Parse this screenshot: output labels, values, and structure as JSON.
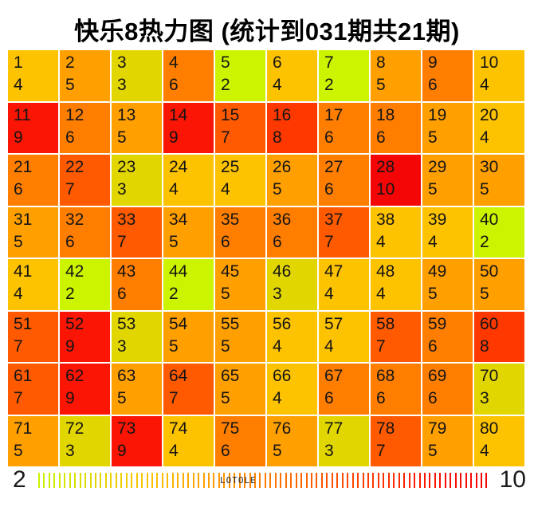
{
  "title": "快乐8热力图 (统计到031期共21期)",
  "legend": {
    "min_label": "2",
    "max_label": "10",
    "watermark": "LOTOLE",
    "tick_count": 88
  },
  "chart_data": {
    "type": "heatmap",
    "title": "快乐8热力图 (统计到031期共21期)",
    "rows": 8,
    "cols": 10,
    "value_range": [
      2,
      10
    ],
    "colormap": {
      "2": "#ccf400",
      "3": "#e2d600",
      "4": "#fdc200",
      "5": "#ff9f00",
      "6": "#ff7e00",
      "7": "#ff5a00",
      "8": "#ff3800",
      "9": "#fb1505",
      "10": "#f40606"
    },
    "cells": [
      {
        "number": 1,
        "count": 4
      },
      {
        "number": 2,
        "count": 5
      },
      {
        "number": 3,
        "count": 3
      },
      {
        "number": 4,
        "count": 6
      },
      {
        "number": 5,
        "count": 2
      },
      {
        "number": 6,
        "count": 4
      },
      {
        "number": 7,
        "count": 2
      },
      {
        "number": 8,
        "count": 5
      },
      {
        "number": 9,
        "count": 6
      },
      {
        "number": 10,
        "count": 4
      },
      {
        "number": 11,
        "count": 9
      },
      {
        "number": 12,
        "count": 6
      },
      {
        "number": 13,
        "count": 5
      },
      {
        "number": 14,
        "count": 9
      },
      {
        "number": 15,
        "count": 7
      },
      {
        "number": 16,
        "count": 8
      },
      {
        "number": 17,
        "count": 6
      },
      {
        "number": 18,
        "count": 6
      },
      {
        "number": 19,
        "count": 5
      },
      {
        "number": 20,
        "count": 4
      },
      {
        "number": 21,
        "count": 6
      },
      {
        "number": 22,
        "count": 7
      },
      {
        "number": 23,
        "count": 3
      },
      {
        "number": 24,
        "count": 4
      },
      {
        "number": 25,
        "count": 4
      },
      {
        "number": 26,
        "count": 5
      },
      {
        "number": 27,
        "count": 6
      },
      {
        "number": 28,
        "count": 10
      },
      {
        "number": 29,
        "count": 5
      },
      {
        "number": 30,
        "count": 5
      },
      {
        "number": 31,
        "count": 5
      },
      {
        "number": 32,
        "count": 6
      },
      {
        "number": 33,
        "count": 7
      },
      {
        "number": 34,
        "count": 5
      },
      {
        "number": 35,
        "count": 6
      },
      {
        "number": 36,
        "count": 6
      },
      {
        "number": 37,
        "count": 7
      },
      {
        "number": 38,
        "count": 4
      },
      {
        "number": 39,
        "count": 4
      },
      {
        "number": 40,
        "count": 2
      },
      {
        "number": 41,
        "count": 4
      },
      {
        "number": 42,
        "count": 2
      },
      {
        "number": 43,
        "count": 6
      },
      {
        "number": 44,
        "count": 2
      },
      {
        "number": 45,
        "count": 5
      },
      {
        "number": 46,
        "count": 3
      },
      {
        "number": 47,
        "count": 4
      },
      {
        "number": 48,
        "count": 4
      },
      {
        "number": 49,
        "count": 5
      },
      {
        "number": 50,
        "count": 5
      },
      {
        "number": 51,
        "count": 7
      },
      {
        "number": 52,
        "count": 9
      },
      {
        "number": 53,
        "count": 3
      },
      {
        "number": 54,
        "count": 5
      },
      {
        "number": 55,
        "count": 5
      },
      {
        "number": 56,
        "count": 4
      },
      {
        "number": 57,
        "count": 4
      },
      {
        "number": 58,
        "count": 7
      },
      {
        "number": 59,
        "count": 6
      },
      {
        "number": 60,
        "count": 8
      },
      {
        "number": 61,
        "count": 7
      },
      {
        "number": 62,
        "count": 9
      },
      {
        "number": 63,
        "count": 5
      },
      {
        "number": 64,
        "count": 7
      },
      {
        "number": 65,
        "count": 5
      },
      {
        "number": 66,
        "count": 4
      },
      {
        "number": 67,
        "count": 6
      },
      {
        "number": 68,
        "count": 6
      },
      {
        "number": 69,
        "count": 6
      },
      {
        "number": 70,
        "count": 3
      },
      {
        "number": 71,
        "count": 5
      },
      {
        "number": 72,
        "count": 3
      },
      {
        "number": 73,
        "count": 9
      },
      {
        "number": 74,
        "count": 4
      },
      {
        "number": 75,
        "count": 6
      },
      {
        "number": 76,
        "count": 5
      },
      {
        "number": 77,
        "count": 3
      },
      {
        "number": 78,
        "count": 7
      },
      {
        "number": 79,
        "count": 5
      },
      {
        "number": 80,
        "count": 4
      }
    ]
  }
}
